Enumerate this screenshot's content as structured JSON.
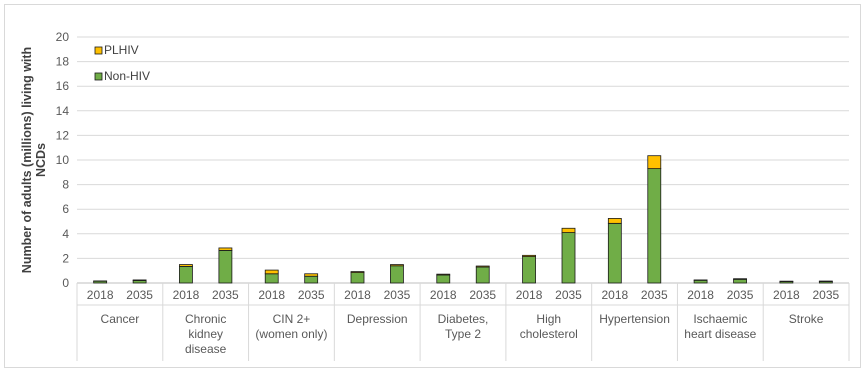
{
  "chart_data": {
    "type": "bar",
    "stacked": true,
    "ylabel": [
      "Number of adults (millions) living with",
      "NCDs"
    ],
    "ylim": [
      0,
      20
    ],
    "yticks": [
      0,
      2,
      4,
      6,
      8,
      10,
      12,
      14,
      16,
      18,
      20
    ],
    "grid": true,
    "legend_position": "top-left",
    "groups": [
      {
        "label": [
          "Cancer"
        ]
      },
      {
        "label": [
          "Chronic",
          "kidney",
          "disease"
        ]
      },
      {
        "label": [
          "CIN 2+",
          "(women only)"
        ]
      },
      {
        "label": [
          "Depression"
        ]
      },
      {
        "label": [
          "Diabetes,",
          "Type 2"
        ]
      },
      {
        "label": [
          "High",
          "cholesterol"
        ]
      },
      {
        "label": [
          "Hypertension"
        ]
      },
      {
        "label": [
          "Ischaemic",
          "heart disease"
        ]
      },
      {
        "label": [
          "Stroke"
        ]
      }
    ],
    "years": [
      "2018",
      "2035"
    ],
    "series": [
      {
        "name": "Non-HIV",
        "color": "#70ad47",
        "values": [
          [
            0.15,
            0.2
          ],
          [
            1.35,
            2.65
          ],
          [
            0.75,
            0.55
          ],
          [
            0.85,
            1.4
          ],
          [
            0.65,
            1.3
          ],
          [
            2.15,
            4.1
          ],
          [
            4.85,
            9.3
          ],
          [
            0.22,
            0.3
          ],
          [
            0.12,
            0.12
          ]
        ]
      },
      {
        "name": "PLHIV",
        "color": "#ffc000",
        "values": [
          [
            0.02,
            0.05
          ],
          [
            0.15,
            0.2
          ],
          [
            0.3,
            0.2
          ],
          [
            0.08,
            0.1
          ],
          [
            0.07,
            0.08
          ],
          [
            0.1,
            0.35
          ],
          [
            0.4,
            1.05
          ],
          [
            0.03,
            0.05
          ],
          [
            0.03,
            0.04
          ]
        ]
      }
    ]
  }
}
